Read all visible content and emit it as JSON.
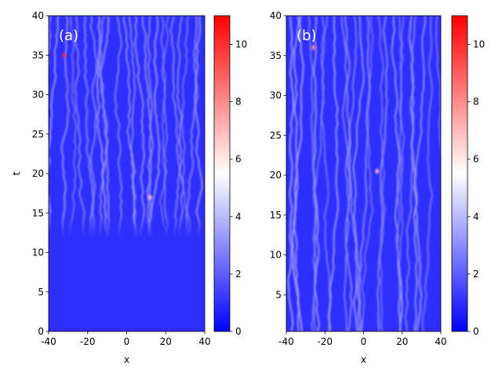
{
  "chart_data": [
    {
      "type": "heatmap",
      "panel_label": "(a)",
      "xlabel": "x",
      "ylabel": "t",
      "xlim": [
        -40,
        40
      ],
      "ylim": [
        0,
        40
      ],
      "xticks": [
        -40,
        -20,
        0,
        20,
        40
      ],
      "yticks": [
        0,
        5,
        10,
        15,
        20,
        25,
        30,
        35,
        40
      ],
      "colormap": [
        "#0000ff",
        "#ffffff",
        "#ff0000"
      ],
      "colorbar": {
        "range": [
          0,
          11
        ],
        "ticks": [
          0,
          2,
          4,
          6,
          8,
          10
        ]
      },
      "field_description": {
        "background_value": 1,
        "filament_onset_t": 12,
        "filament_peak_value": 3,
        "isolated_peaks": [
          {
            "x": -32,
            "t": 35,
            "value": 10
          },
          {
            "x": 12,
            "t": 17,
            "value": 7
          }
        ]
      }
    },
    {
      "type": "heatmap",
      "panel_label": "(b)",
      "xlabel": "x",
      "ylabel": "",
      "xlim": [
        -40,
        40
      ],
      "ylim": [
        0.4,
        40
      ],
      "xticks": [
        -40,
        -20,
        0,
        20,
        40
      ],
      "yticks": [
        5,
        10,
        15,
        20,
        25,
        30,
        35,
        40
      ],
      "colormap": [
        "#0000ff",
        "#ffffff",
        "#ff0000"
      ],
      "colorbar": {
        "range": [
          0,
          11
        ],
        "ticks": [
          0,
          2,
          4,
          6,
          8,
          10
        ]
      },
      "field_description": {
        "background_value": 1,
        "filament_onset_t": 0.4,
        "filament_peak_value": 3,
        "isolated_peaks": [
          {
            "x": -26,
            "t": 36,
            "value": 8
          },
          {
            "x": 7,
            "t": 20.5,
            "value": 7
          }
        ]
      }
    }
  ]
}
